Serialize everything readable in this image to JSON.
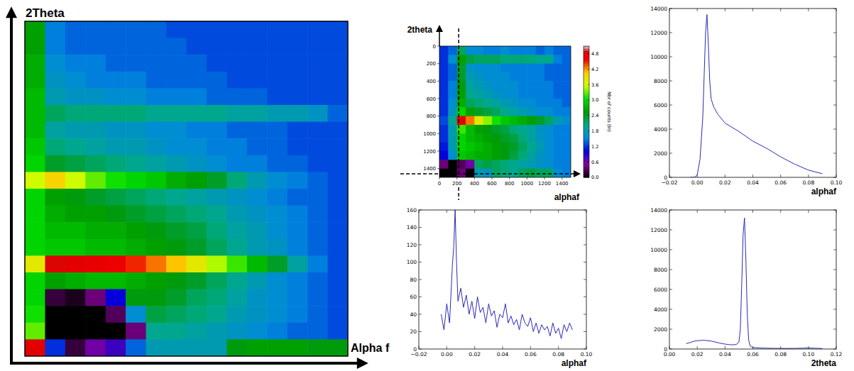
{
  "chart_data": [
    {
      "type": "heatmap",
      "x_label": "Alpha f",
      "y_label": "2Theta",
      "tick_labels": false,
      "zlim": [
        0,
        5.1
      ],
      "cells": [
        [
          2.6,
          1.5,
          1.4,
          1.4,
          1.4,
          1.4,
          1.4,
          1.3,
          1.3,
          1.3,
          1.3,
          1.3,
          1.3,
          1.3,
          1.3,
          1.3
        ],
        [
          2.6,
          1.5,
          1.4,
          1.4,
          1.4,
          1.4,
          1.4,
          1.4,
          1.3,
          1.3,
          1.3,
          1.3,
          1.3,
          1.3,
          1.3,
          1.3
        ],
        [
          2.7,
          1.6,
          1.5,
          1.5,
          1.4,
          1.4,
          1.4,
          1.4,
          1.4,
          1.3,
          1.3,
          1.3,
          1.3,
          1.3,
          1.3,
          1.3
        ],
        [
          2.7,
          1.7,
          1.6,
          1.5,
          1.5,
          1.5,
          1.4,
          1.4,
          1.4,
          1.4,
          1.3,
          1.3,
          1.3,
          1.3,
          1.3,
          1.3
        ],
        [
          2.8,
          1.8,
          1.7,
          1.7,
          1.6,
          1.6,
          1.5,
          1.5,
          1.5,
          1.4,
          1.4,
          1.4,
          1.3,
          1.3,
          1.3,
          1.3
        ],
        [
          2.8,
          2.2,
          2.1,
          2.1,
          2.1,
          2.1,
          2.0,
          2.0,
          2.0,
          2.0,
          1.9,
          1.9,
          1.8,
          1.8,
          1.7,
          1.4
        ],
        [
          2.8,
          1.9,
          1.8,
          1.8,
          1.7,
          1.7,
          1.6,
          1.6,
          1.5,
          1.5,
          1.4,
          1.4,
          1.4,
          1.3,
          1.3,
          1.3
        ],
        [
          2.9,
          2.1,
          2.0,
          1.9,
          1.8,
          1.8,
          1.7,
          1.6,
          1.6,
          1.5,
          1.5,
          1.4,
          1.4,
          1.3,
          1.3,
          1.3
        ],
        [
          3.0,
          2.4,
          2.3,
          2.2,
          2.1,
          2.0,
          1.9,
          1.8,
          1.7,
          1.6,
          1.5,
          1.5,
          1.4,
          1.4,
          1.3,
          1.3
        ],
        [
          3.6,
          4.0,
          3.6,
          3.3,
          3.1,
          3.0,
          2.9,
          2.7,
          2.6,
          2.4,
          2.1,
          1.8,
          1.6,
          1.5,
          1.4,
          1.3
        ],
        [
          3.0,
          2.6,
          2.5,
          2.4,
          2.3,
          2.2,
          2.1,
          2.0,
          1.9,
          1.8,
          1.7,
          1.6,
          1.5,
          1.4,
          1.4,
          1.3
        ],
        [
          3.0,
          2.7,
          2.6,
          2.6,
          2.5,
          2.4,
          2.3,
          2.2,
          2.1,
          2.0,
          1.8,
          1.7,
          1.6,
          1.5,
          1.4,
          1.3
        ],
        [
          3.0,
          2.8,
          2.8,
          2.7,
          2.7,
          2.6,
          2.5,
          2.4,
          2.3,
          2.1,
          1.9,
          1.8,
          1.6,
          1.5,
          1.4,
          1.3
        ],
        [
          3.0,
          2.9,
          2.9,
          2.8,
          2.8,
          2.7,
          2.6,
          2.5,
          2.4,
          2.2,
          2.0,
          1.8,
          1.7,
          1.5,
          1.4,
          1.3
        ],
        [
          3.8,
          4.9,
          4.8,
          4.7,
          4.6,
          4.5,
          4.3,
          4.1,
          3.8,
          3.5,
          3.2,
          2.8,
          2.4,
          1.9,
          1.5,
          1.3
        ],
        [
          3.0,
          2.6,
          2.7,
          2.8,
          2.8,
          2.7,
          2.6,
          2.5,
          2.4,
          2.2,
          2.0,
          1.8,
          1.6,
          1.5,
          1.4,
          1.3
        ],
        [
          3.0,
          0.2,
          0.1,
          0.4,
          1.0,
          2.5,
          2.5,
          2.4,
          2.2,
          2.1,
          1.9,
          1.7,
          1.6,
          1.5,
          1.4,
          1.3
        ],
        [
          3.1,
          0.0,
          0.0,
          0.0,
          0.3,
          1.6,
          2.3,
          2.2,
          2.1,
          2.0,
          1.8,
          1.7,
          1.6,
          1.5,
          1.4,
          1.3
        ],
        [
          3.3,
          0.0,
          0.0,
          0.0,
          0.0,
          0.4,
          2.0,
          2.0,
          1.9,
          1.8,
          1.7,
          1.6,
          1.5,
          1.4,
          1.4,
          1.3
        ],
        [
          4.8,
          1.2,
          0.2,
          0.6,
          0.8,
          1.4,
          1.8,
          1.8,
          1.8,
          1.8,
          2.5,
          2.6,
          2.6,
          2.6,
          2.5,
          2.5
        ]
      ]
    },
    {
      "type": "heatmap",
      "x_label": "alphaf",
      "y_label": "2theta",
      "xlim": [
        0,
        1500
      ],
      "xticks": [
        0,
        200,
        400,
        600,
        800,
        1000,
        1200,
        1400
      ],
      "ylim": [
        1500,
        0
      ],
      "yticks": [
        0,
        200,
        400,
        600,
        800,
        1000,
        1200,
        1400
      ],
      "zlim": [
        0,
        5.1
      ],
      "cbar_ticks": [
        {
          "value": 0,
          "label": "0.0"
        },
        {
          "value": 0.6,
          "label": "0.6"
        },
        {
          "value": 1.2,
          "label": "1.2"
        },
        {
          "value": 1.8,
          "label": "1.8"
        },
        {
          "value": 2.4,
          "label": "2.4"
        },
        {
          "value": 3.0,
          "label": "3.0"
        },
        {
          "value": 3.6,
          "label": "3.6"
        },
        {
          "value": 4.2,
          "label": "4.2"
        },
        {
          "value": 4.8,
          "label": "4.8"
        }
      ],
      "colorbar_label": "Nbr of counts (ln)",
      "cut_x": 220,
      "cut_y": 1460,
      "cells": [
        [
          1.2,
          1.4,
          2.2,
          1.6,
          1.6,
          1.5,
          1.5,
          1.6,
          1.5,
          1.5,
          1.5,
          1.4,
          1.5,
          1.4,
          1.4
        ],
        [
          1.2,
          1.6,
          2.6,
          2.3,
          2.2,
          2.2,
          2.2,
          2.1,
          2.1,
          2.1,
          2.1,
          2.0,
          2.0,
          1.5,
          1.4
        ],
        [
          1.2,
          1.4,
          2.4,
          1.7,
          1.6,
          1.6,
          1.6,
          1.5,
          1.5,
          1.5,
          1.5,
          1.5,
          1.4,
          1.4,
          1.4
        ],
        [
          1.2,
          1.4,
          2.4,
          1.8,
          1.7,
          1.6,
          1.6,
          1.6,
          1.5,
          1.5,
          1.5,
          1.5,
          1.4,
          1.4,
          1.4
        ],
        [
          1.2,
          1.5,
          2.5,
          1.9,
          1.8,
          1.7,
          1.6,
          1.6,
          1.6,
          1.5,
          1.5,
          1.5,
          1.5,
          1.4,
          1.4
        ],
        [
          1.2,
          1.5,
          2.6,
          2.0,
          1.9,
          1.8,
          1.7,
          1.6,
          1.6,
          1.5,
          1.5,
          1.5,
          1.5,
          1.4,
          1.4
        ],
        [
          1.2,
          1.6,
          2.7,
          2.2,
          2.1,
          2.0,
          1.9,
          1.8,
          1.7,
          1.6,
          1.6,
          1.5,
          1.5,
          1.5,
          1.4
        ],
        [
          1.2,
          1.7,
          3.0,
          2.6,
          2.4,
          2.3,
          2.2,
          2.0,
          1.9,
          1.8,
          1.7,
          1.6,
          1.6,
          1.5,
          1.5
        ],
        [
          1.3,
          2.0,
          4.8,
          4.3,
          3.8,
          3.4,
          3.1,
          2.9,
          2.8,
          2.7,
          2.6,
          2.4,
          2.2,
          1.8,
          1.6
        ],
        [
          1.2,
          1.8,
          3.2,
          2.8,
          2.6,
          2.5,
          2.4,
          2.3,
          2.1,
          2.0,
          1.9,
          1.7,
          1.6,
          1.5,
          1.5
        ],
        [
          1.2,
          1.8,
          3.0,
          2.8,
          2.7,
          2.6,
          2.5,
          2.4,
          2.3,
          2.1,
          1.9,
          1.7,
          1.6,
          1.5,
          1.5
        ],
        [
          1.1,
          1.8,
          3.0,
          2.9,
          2.8,
          2.7,
          2.6,
          2.5,
          2.4,
          2.2,
          2.0,
          1.8,
          1.6,
          1.5,
          1.5
        ],
        [
          1.0,
          1.6,
          2.9,
          2.8,
          2.7,
          2.7,
          2.6,
          2.5,
          2.3,
          2.1,
          1.9,
          1.7,
          1.6,
          1.5,
          1.5
        ],
        [
          0.4,
          0.0,
          0.3,
          0.6,
          2.2,
          2.3,
          2.2,
          2.1,
          2.0,
          1.9,
          1.8,
          1.7,
          1.6,
          1.5,
          1.5
        ],
        [
          0.0,
          0.0,
          0.4,
          0.0,
          1.8,
          1.7,
          2.2,
          2.1,
          2.0,
          2.2,
          2.3,
          2.2,
          2.2,
          1.6,
          1.5
        ]
      ]
    },
    {
      "type": "line",
      "x_label": "alphaf",
      "color": "#2a2ab8",
      "xlim": [
        -0.02,
        0.1
      ],
      "xticks": [
        {
          "value": -0.02,
          "label": "−0.02"
        },
        {
          "value": 0,
          "label": "0.00"
        },
        {
          "value": 0.02,
          "label": "0.02"
        },
        {
          "value": 0.04,
          "label": "0.04"
        },
        {
          "value": 0.06,
          "label": "0.06"
        },
        {
          "value": 0.08,
          "label": "0.08"
        },
        {
          "value": 0.1,
          "label": "0.10"
        }
      ],
      "ylim": [
        0,
        14000
      ],
      "yticks": [
        0,
        2000,
        4000,
        6000,
        8000,
        10000,
        12000,
        14000
      ],
      "x": [
        -0.005,
        -0.002,
        0.0,
        0.002,
        0.004,
        0.005,
        0.006,
        0.007,
        0.008,
        0.009,
        0.01,
        0.012,
        0.015,
        0.02,
        0.03,
        0.04,
        0.05,
        0.06,
        0.07,
        0.08,
        0.09
      ],
      "values": [
        0,
        0,
        200,
        1500,
        5000,
        8500,
        12000,
        13500,
        11000,
        8000,
        6500,
        5800,
        5200,
        4500,
        3800,
        3000,
        2400,
        1700,
        1100,
        600,
        300
      ]
    },
    {
      "type": "line",
      "x_label": "alphaf",
      "color": "#2a2ab8",
      "xlim": [
        -0.02,
        0.1
      ],
      "xticks": [
        {
          "value": -0.02,
          "label": "−0.02"
        },
        {
          "value": 0,
          "label": "0.00"
        },
        {
          "value": 0.02,
          "label": "0.02"
        },
        {
          "value": 0.04,
          "label": "0.04"
        },
        {
          "value": 0.06,
          "label": "0.06"
        },
        {
          "value": 0.08,
          "label": "0.08"
        },
        {
          "value": 0.1,
          "label": "0.10"
        }
      ],
      "ylim": [
        0,
        160
      ],
      "yticks": [
        0,
        20,
        40,
        60,
        80,
        100,
        120,
        140,
        160
      ],
      "x": [
        -0.004,
        -0.002,
        0.0,
        0.002,
        0.004,
        0.005,
        0.006,
        0.007,
        0.008,
        0.01,
        0.012,
        0.014,
        0.016,
        0.018,
        0.02,
        0.022,
        0.024,
        0.026,
        0.028,
        0.03,
        0.032,
        0.034,
        0.036,
        0.038,
        0.04,
        0.042,
        0.044,
        0.046,
        0.048,
        0.05,
        0.052,
        0.054,
        0.056,
        0.058,
        0.06,
        0.062,
        0.064,
        0.066,
        0.068,
        0.07,
        0.072,
        0.074,
        0.076,
        0.078,
        0.08,
        0.082,
        0.084,
        0.086,
        0.088,
        0.09
      ],
      "values": [
        40,
        22,
        52,
        30,
        95,
        118,
        160,
        100,
        55,
        70,
        48,
        62,
        40,
        55,
        35,
        60,
        42,
        48,
        30,
        52,
        38,
        44,
        25,
        40,
        36,
        52,
        30,
        38,
        28,
        34,
        22,
        40,
        30,
        26,
        36,
        20,
        30,
        18,
        28,
        22,
        26,
        15,
        30,
        18,
        24,
        12,
        28,
        20,
        30,
        22
      ]
    },
    {
      "type": "line",
      "x_label": "2theta",
      "color": "#2a2ab8",
      "xlim": [
        0,
        0.12
      ],
      "xticks": [
        {
          "value": 0,
          "label": "0.00"
        },
        {
          "value": 0.02,
          "label": "0.02"
        },
        {
          "value": 0.04,
          "label": "0.04"
        },
        {
          "value": 0.06,
          "label": "0.06"
        },
        {
          "value": 0.08,
          "label": "0.08"
        },
        {
          "value": 0.1,
          "label": "0.10"
        },
        {
          "value": 0.12,
          "label": "0.12"
        }
      ],
      "ylim": [
        0,
        14000
      ],
      "yticks": [
        0,
        2000,
        4000,
        6000,
        8000,
        10000,
        12000,
        14000
      ],
      "x": [
        0.012,
        0.015,
        0.018,
        0.021,
        0.024,
        0.027,
        0.03,
        0.033,
        0.036,
        0.039,
        0.042,
        0.045,
        0.048,
        0.05,
        0.051,
        0.052,
        0.053,
        0.054,
        0.055,
        0.056,
        0.057,
        0.058,
        0.06,
        0.065,
        0.07,
        0.08,
        0.09,
        0.1,
        0.11
      ],
      "values": [
        550,
        650,
        800,
        850,
        880,
        850,
        800,
        700,
        600,
        520,
        460,
        420,
        450,
        700,
        2000,
        6500,
        11500,
        13200,
        9000,
        3500,
        900,
        300,
        150,
        100,
        80,
        60,
        60,
        100,
        50
      ]
    }
  ]
}
